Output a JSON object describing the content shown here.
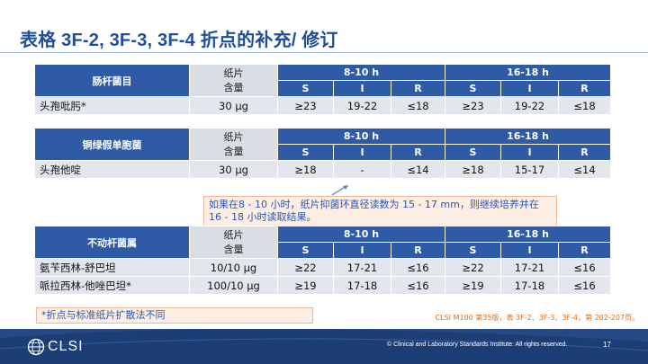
{
  "title": "表格 3F-2, 3F-3, 3F-4 折点的补充/ 修订",
  "disk_label_line1": "纸片",
  "disk_label_line2": "含量",
  "time_8_10": "8-10 h",
  "time_16_18": "16-18 h",
  "sir": [
    "S",
    "I",
    "R"
  ],
  "table1": {
    "organism": "肠杆菌目",
    "rows": [
      {
        "drug": "头孢吡肟*",
        "disk": "30 μg",
        "v": [
          "≥23",
          "19-22",
          "≤18",
          "≥23",
          "19-22",
          "≤18"
        ]
      }
    ]
  },
  "table2": {
    "organism": "铜绿假单胞菌",
    "rows": [
      {
        "drug": "头孢他啶",
        "disk": "30 μg",
        "v": [
          "≥18",
          "-",
          "≤14",
          "≥18",
          "15-17",
          "≤14"
        ]
      }
    ]
  },
  "table3": {
    "organism": "不动杆菌属",
    "rows": [
      {
        "drug": "氨苄西林-舒巴坦",
        "disk": "10/10 μg",
        "v": [
          "≥22",
          "17-21",
          "≤16",
          "≥22",
          "17-21",
          "≤16"
        ]
      },
      {
        "drug": "哌拉西林-他唑巴坦*",
        "disk": "100/10 μg",
        "v": [
          "≥19",
          "17-18",
          "≤16",
          "≥19",
          "17-18",
          "≤16"
        ]
      }
    ]
  },
  "note": "如果在8 - 10 小时，纸片抑菌环直径读数为 15 - 17 mm，则继续培养并在 16 - 18 小时读取结果。",
  "footnote": "*折点与标准纸片扩散法不同",
  "reference": "CLSI M100 第35版，表 3F-2、3F-3、3F-4，第 202-207页。",
  "footer": {
    "logo_text": "CLSI",
    "copyright": "© Clinical and Laboratory Standards Institute. All rights reserved.",
    "page": "17"
  },
  "colors": {
    "title": "#1f4e9a",
    "header": "#2f5aa5",
    "cell": "#e3e6ec",
    "note_bg": "#fdeee4",
    "note_text": "#2b56b0",
    "reference": "#e46c0a",
    "footer": "#1d3e75"
  }
}
